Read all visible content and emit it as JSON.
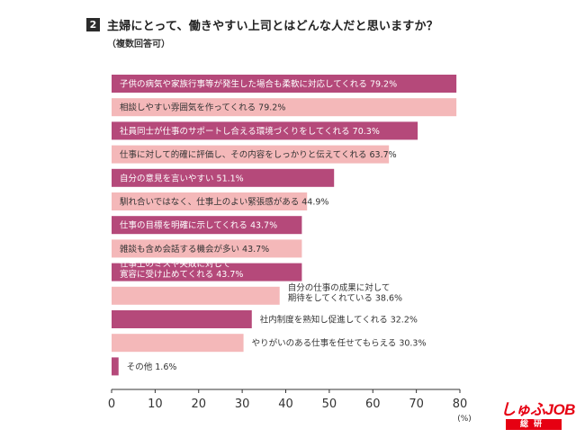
{
  "question": {
    "number": "2",
    "title": "主婦にとって、働きやすい上司とはどんな人だと思いますか？",
    "subtitle": "（複数回答可）"
  },
  "colors": {
    "dark_bar": "#b5497a",
    "light_bar": "#f4b8b9",
    "grid": "#999999"
  },
  "chart_data": {
    "type": "bar",
    "orientation": "horizontal",
    "categories": [
      "子供の病気や家族行事等が発生した場合も柔軟に対応してくれる",
      "相談しやすい雰囲気を作ってくれる",
      "社員同士が仕事のサポートし合える環境づくりをしてくれる",
      "仕事に対して的確に評価し、その内容をしっかりと伝えてくれる",
      "自分の意見を言いやすい",
      "馴れ合いではなく、仕事上のよい緊張感がある",
      "仕事の目標を明確に示してくれる",
      "雑談も含め会話する機会が多い",
      "仕事上のミスや失敗に対して 寛容に受け止めてくれる",
      "自分の仕事の成果に対して 期待をしてくれている",
      "社内制度を熟知し促進してくれる",
      "やりがいのある仕事を任せてもらえる",
      "その他"
    ],
    "labels": [
      [
        "子供の病気や家族行事等が発生した場合も柔軟に対応してくれる 79.2%"
      ],
      [
        "相談しやすい雰囲気を作ってくれる 79.2%"
      ],
      [
        "社員同士が仕事のサポートし合える環境づくりをしてくれる 70.3%"
      ],
      [
        "仕事に対して的確に評価し、その内容をしっかりと伝えてくれる 63.7%"
      ],
      [
        "自分の意見を言いやすい 51.1%"
      ],
      [
        "馴れ合いではなく、仕事上のよい緊張感がある 44.9%"
      ],
      [
        "仕事の目標を明確に示してくれる 43.7%"
      ],
      [
        "雑談も含め会話する機会が多い 43.7%"
      ],
      [
        "仕事上のミスや失敗に対して",
        "寛容に受け止めてくれる 43.7%"
      ],
      [
        "自分の仕事の成果に対して",
        "期待をしてくれている 38.6%"
      ],
      [
        "社内制度を熟知し促進してくれる 32.2%"
      ],
      [
        "やりがいのある仕事を任せてもらえる 30.3%"
      ],
      [
        "その他 1.6%"
      ]
    ],
    "values": [
      79.2,
      79.2,
      70.3,
      63.7,
      51.1,
      44.9,
      43.7,
      43.7,
      43.7,
      38.6,
      32.2,
      30.3,
      1.6
    ],
    "xticks": [
      "0",
      "10",
      "20",
      "30",
      "40",
      "50",
      "60",
      "70",
      "80"
    ],
    "xlim": [
      0,
      80
    ],
    "xunit": "(%)",
    "grid": false
  },
  "brand": {
    "logo_main": "しゅふJOB",
    "logo_sub": "総研"
  }
}
